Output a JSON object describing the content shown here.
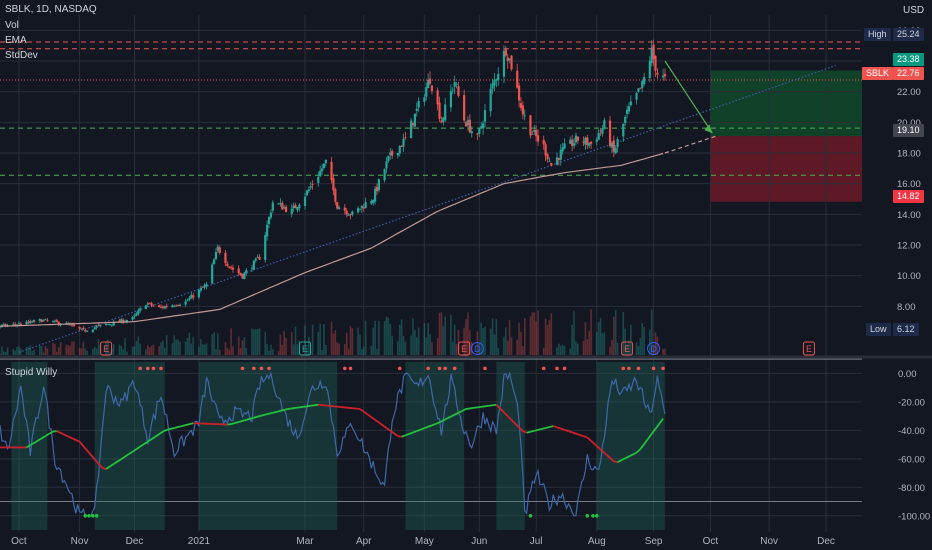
{
  "header": {
    "symbol_line": "SBLK, 1D, NASDAQ",
    "indicators": [
      "Vol",
      "EMA",
      "StdDev"
    ],
    "currency": "USD"
  },
  "lower_pane": {
    "title": "Stupid Willy"
  },
  "colors": {
    "background": "#131722",
    "up_candle": "#26a69a",
    "down_candle": "#ef5350",
    "ema": "#c29a95",
    "oscillator": "#3e68a8",
    "signal_up": "#22c33c",
    "signal_down": "#d1202a",
    "stop_zone": "#7a1a28",
    "target_zone": "#0f4a2a",
    "earnings_marker": "#ef5350",
    "dividend_marker": "#2962ff"
  },
  "markers": {
    "earnings": [
      "E",
      "E",
      "E",
      "E",
      "E"
    ],
    "dividends": [
      "D",
      "D",
      "D"
    ]
  },
  "price_tags": {
    "high_label": "High",
    "high_value": "25.24",
    "target_value": "23.38",
    "last_label": "SBLK",
    "last_value": "22.76",
    "entry_value": "19.10",
    "stop_value": "14.82",
    "low_label": "Low",
    "low_value": "6.12"
  },
  "chart_data": [
    {
      "type": "candlestick",
      "title": "SBLK, 1D, NASDAQ",
      "x_tick_labels": [
        "Oct",
        "Nov",
        "Dec",
        "2021",
        "Mar",
        "Apr",
        "May",
        "Jun",
        "Jul",
        "Aug",
        "Sep",
        "Oct",
        "Nov",
        "Dec"
      ],
      "y_tick_labels": [
        "26.00",
        "24.00",
        "22.00",
        "20.00",
        "18.00",
        "16.00",
        "14.00",
        "12.00",
        "10.00",
        "8.00"
      ],
      "ylim": [
        6,
        27
      ],
      "x_range": [
        "2020-09-21",
        "2021-12-20"
      ],
      "close_anchors": [
        [
          "2020-09-21",
          6.7
        ],
        [
          "2020-10-05",
          6.9
        ],
        [
          "2020-10-13",
          7.1
        ],
        [
          "2020-10-27",
          6.8
        ],
        [
          "2020-11-04",
          6.4
        ],
        [
          "2020-11-12",
          6.7
        ],
        [
          "2020-11-30",
          7.2
        ],
        [
          "2020-12-07",
          8.2
        ],
        [
          "2020-12-14",
          7.9
        ],
        [
          "2020-12-28",
          8.3
        ],
        [
          "2021-01-08",
          9.4
        ],
        [
          "2021-01-14",
          11.8
        ],
        [
          "2021-01-20",
          10.6
        ],
        [
          "2021-01-27",
          10.0
        ],
        [
          "2021-02-05",
          11.2
        ],
        [
          "2021-02-12",
          14.8
        ],
        [
          "2021-02-22",
          14.2
        ],
        [
          "2021-03-03",
          15.6
        ],
        [
          "2021-03-12",
          17.4
        ],
        [
          "2021-03-18",
          14.6
        ],
        [
          "2021-03-26",
          14.0
        ],
        [
          "2021-04-06",
          15.1
        ],
        [
          "2021-04-14",
          17.6
        ],
        [
          "2021-04-23",
          18.9
        ],
        [
          "2021-05-06",
          22.9
        ],
        [
          "2021-05-12",
          20.1
        ],
        [
          "2021-05-19",
          22.7
        ],
        [
          "2021-05-24",
          20.2
        ],
        [
          "2021-05-31",
          18.9
        ],
        [
          "2021-06-07",
          22.0
        ],
        [
          "2021-06-15",
          24.8
        ],
        [
          "2021-06-18",
          23.7
        ],
        [
          "2021-06-24",
          20.6
        ],
        [
          "2021-06-28",
          19.5
        ],
        [
          "2021-07-05",
          18.4
        ],
        [
          "2021-07-09",
          17.2
        ],
        [
          "2021-07-16",
          18.3
        ],
        [
          "2021-07-23",
          18.9
        ],
        [
          "2021-07-30",
          18.6
        ],
        [
          "2021-08-06",
          19.8
        ],
        [
          "2021-08-11",
          18.0
        ],
        [
          "2021-08-18",
          20.6
        ],
        [
          "2021-08-26",
          22.4
        ],
        [
          "2021-08-31",
          24.6
        ],
        [
          "2021-09-03",
          23.2
        ],
        [
          "2021-09-07",
          22.76
        ]
      ],
      "ema_anchors": [
        [
          "2020-09-21",
          6.7
        ],
        [
          "2020-12-01",
          7.0
        ],
        [
          "2021-01-15",
          7.8
        ],
        [
          "2021-03-01",
          10.2
        ],
        [
          "2021-04-05",
          11.8
        ],
        [
          "2021-05-10",
          14.2
        ],
        [
          "2021-06-14",
          16.0
        ],
        [
          "2021-07-15",
          16.7
        ],
        [
          "2021-08-15",
          17.2
        ],
        [
          "2021-09-07",
          18.0
        ]
      ],
      "ema_projection": [
        [
          "2021-09-07",
          18.0
        ],
        [
          "2021-10-04",
          19.1
        ]
      ],
      "trendline": [
        [
          "2020-10-01",
          5.0
        ],
        [
          "2021-10-04",
          19.1
        ],
        [
          "2021-12-06",
          23.7
        ]
      ],
      "arrow_line": [
        [
          "2021-09-07",
          24.0
        ],
        [
          "2021-10-02",
          19.3
        ]
      ],
      "horizontal_levels": [
        {
          "price": 25.24,
          "style": "dashed-red"
        },
        {
          "price": 24.8,
          "style": "dashed-red"
        },
        {
          "price": 22.76,
          "style": "dotted-red"
        },
        {
          "price": 19.62,
          "style": "dashed-green"
        },
        {
          "price": 16.55,
          "style": "dashed-green"
        }
      ],
      "position_box": {
        "x_start": "2021-10-01",
        "x_end": "2021-12-20",
        "target": 23.38,
        "entry": 19.1,
        "stop": 14.82
      },
      "volume": "many bars along the bottom of the price pane; volume scale not printed"
    },
    {
      "type": "line",
      "title": "Stupid Willy",
      "y_tick_labels": [
        "0.00",
        "-20.00",
        "-40.00",
        "-60.00",
        "-80.00",
        "-100.00"
      ],
      "ylim": [
        -110,
        8
      ],
      "oscillator_anchors": [
        [
          "2020-09-21",
          -40
        ],
        [
          "2020-09-25",
          -55
        ],
        [
          "2020-10-02",
          -10
        ],
        [
          "2020-10-07",
          -55
        ],
        [
          "2020-10-14",
          -8
        ],
        [
          "2020-10-20",
          -60
        ],
        [
          "2020-10-27",
          -80
        ],
        [
          "2020-11-02",
          -100
        ],
        [
          "2020-11-10",
          -99
        ],
        [
          "2020-11-16",
          -10
        ],
        [
          "2020-11-24",
          -22
        ],
        [
          "2020-12-01",
          -5
        ],
        [
          "2020-12-08",
          -45
        ],
        [
          "2020-12-15",
          -15
        ],
        [
          "2020-12-22",
          -55
        ],
        [
          "2021-01-04",
          -35
        ],
        [
          "2021-01-08",
          -5
        ],
        [
          "2021-01-15",
          -35
        ],
        [
          "2021-01-22",
          -28
        ],
        [
          "2021-02-01",
          -30
        ],
        [
          "2021-02-05",
          -8
        ],
        [
          "2021-02-11",
          0
        ],
        [
          "2021-02-18",
          -28
        ],
        [
          "2021-02-25",
          -45
        ],
        [
          "2021-03-05",
          -10
        ],
        [
          "2021-03-12",
          -5
        ],
        [
          "2021-03-18",
          -55
        ],
        [
          "2021-03-26",
          -35
        ],
        [
          "2021-04-02",
          -55
        ],
        [
          "2021-04-12",
          -80
        ],
        [
          "2021-04-16",
          -30
        ],
        [
          "2021-04-23",
          -2
        ],
        [
          "2021-04-29",
          -10
        ],
        [
          "2021-05-05",
          0
        ],
        [
          "2021-05-12",
          -40
        ],
        [
          "2021-05-17",
          -5
        ],
        [
          "2021-05-24",
          -40
        ],
        [
          "2021-05-28",
          -50
        ],
        [
          "2021-06-03",
          -30
        ],
        [
          "2021-06-10",
          -40
        ],
        [
          "2021-06-14",
          -5
        ],
        [
          "2021-06-17",
          0
        ],
        [
          "2021-06-22",
          -30
        ],
        [
          "2021-06-25",
          -100
        ],
        [
          "2021-07-01",
          -70
        ],
        [
          "2021-07-08",
          -92
        ],
        [
          "2021-07-14",
          -85
        ],
        [
          "2021-07-22",
          -99
        ],
        [
          "2021-07-28",
          -60
        ],
        [
          "2021-08-03",
          -70
        ],
        [
          "2021-08-10",
          -5
        ],
        [
          "2021-08-16",
          -15
        ],
        [
          "2021-08-23",
          -5
        ],
        [
          "2021-08-30",
          -30
        ],
        [
          "2021-09-03",
          -5
        ],
        [
          "2021-09-07",
          -30
        ]
      ],
      "signal_anchors": [
        [
          "2020-09-21",
          -52
        ],
        [
          "2020-10-05",
          -52
        ],
        [
          "2020-10-20",
          -40
        ],
        [
          "2020-11-02",
          -48
        ],
        [
          "2020-11-15",
          -68
        ],
        [
          "2020-11-30",
          -55
        ],
        [
          "2020-12-17",
          -40
        ],
        [
          "2021-01-01",
          -35
        ],
        [
          "2021-01-20",
          -36
        ],
        [
          "2021-02-05",
          -30
        ],
        [
          "2021-02-20",
          -25
        ],
        [
          "2021-03-08",
          -22
        ],
        [
          "2021-03-30",
          -25
        ],
        [
          "2021-04-20",
          -45
        ],
        [
          "2021-05-10",
          -35
        ],
        [
          "2021-05-25",
          -25
        ],
        [
          "2021-06-10",
          -22
        ],
        [
          "2021-06-25",
          -42
        ],
        [
          "2021-07-10",
          -37
        ],
        [
          "2021-07-28",
          -45
        ],
        [
          "2021-08-12",
          -63
        ],
        [
          "2021-08-24",
          -55
        ],
        [
          "2021-09-07",
          -30
        ]
      ]
    }
  ]
}
